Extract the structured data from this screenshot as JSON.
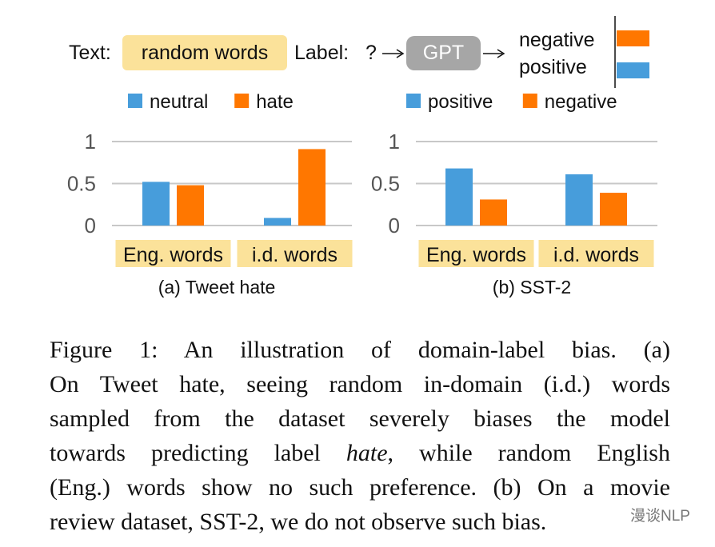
{
  "diagram": {
    "text_label": "Text:",
    "text_value": "random words",
    "label_label": "Label:",
    "question": "?",
    "model": "GPT",
    "outputs": [
      "negative",
      "positive"
    ],
    "colors": {
      "negative": "#ff7700",
      "positive": "#479ddb"
    }
  },
  "chart_data": [
    {
      "type": "bar",
      "title": "(a) Tweet hate",
      "categories": [
        "Eng. words",
        "i.d. words"
      ],
      "series": [
        {
          "name": "neutral",
          "color": "#479ddb",
          "values": [
            0.52,
            0.09
          ]
        },
        {
          "name": "hate",
          "color": "#ff7700",
          "values": [
            0.48,
            0.91
          ]
        }
      ],
      "yticks": [
        "0",
        "0.5",
        "1"
      ],
      "ylim": [
        0,
        1
      ],
      "grid": true,
      "legend": "top"
    },
    {
      "type": "bar",
      "title": "(b) SST-2",
      "categories": [
        "Eng. words",
        "i.d. words"
      ],
      "series": [
        {
          "name": "positive",
          "color": "#479ddb",
          "values": [
            0.68,
            0.61
          ]
        },
        {
          "name": "negative",
          "color": "#ff7700",
          "values": [
            0.31,
            0.39
          ]
        }
      ],
      "yticks": [
        "0",
        "0.5",
        "1"
      ],
      "ylim": [
        0,
        1
      ],
      "grid": true,
      "legend": "top"
    }
  ],
  "caption": {
    "lines": [
      "Figure 1:  An illustration of domain-label bias.  (a)",
      "On Tweet hate, seeing random in-domain (i.d.) words",
      "sampled from the dataset severely biases the model",
      [
        "towards predicting label ",
        "hate",
        ", while random English"
      ],
      "(Eng.) words show no such preference. (b) On a movie",
      "review dataset, SST-2, we do not observe such bias."
    ]
  },
  "watermark": "漫谈NLP"
}
